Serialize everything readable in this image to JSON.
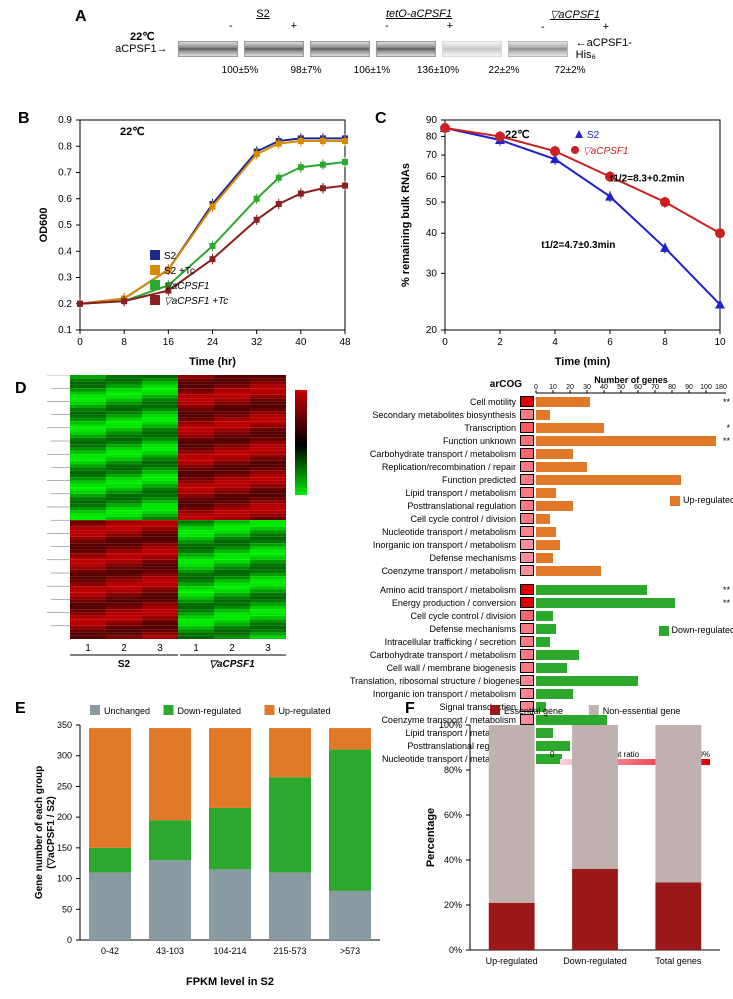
{
  "figure": {
    "panelA": {
      "label": "A",
      "temperature": "22℃",
      "left_label": "aCPSF1→",
      "right_label": "←aCPSF1-His₆",
      "groups": [
        {
          "name": "S2",
          "italic": false
        },
        {
          "name": "tetO-aCPSF1",
          "italic": true
        },
        {
          "name": "▽aCPSF1",
          "italic": true
        }
      ],
      "pm_labels": [
        "-",
        "+",
        "-",
        "+",
        "-",
        "+"
      ],
      "band_intensity": [
        "full",
        "full",
        "full",
        "full",
        "weak",
        "medium"
      ],
      "quants": [
        "100±5%",
        "98±7%",
        "106±1%",
        "136±10%",
        "22±2%",
        "72±2%"
      ]
    },
    "panelB": {
      "label": "B",
      "temperature": "22℃",
      "xlabel": "Time (hr)",
      "ylabel": "OD600",
      "xlim": [
        0,
        48
      ],
      "xtick_step": 8,
      "ylim": [
        0.1,
        0.9
      ],
      "ytick_step": 0.1,
      "series": [
        {
          "name": "S2",
          "color": "#1a2a8a",
          "data": [
            [
              0,
              0.2
            ],
            [
              8,
              0.22
            ],
            [
              16,
              0.33
            ],
            [
              24,
              0.58
            ],
            [
              32,
              0.78
            ],
            [
              36,
              0.82
            ],
            [
              40,
              0.83
            ],
            [
              44,
              0.83
            ],
            [
              48,
              0.83
            ]
          ]
        },
        {
          "name": "S2 +Tc",
          "color": "#d98a00",
          "data": [
            [
              0,
              0.2
            ],
            [
              8,
              0.22
            ],
            [
              16,
              0.33
            ],
            [
              24,
              0.57
            ],
            [
              32,
              0.77
            ],
            [
              36,
              0.81
            ],
            [
              40,
              0.82
            ],
            [
              44,
              0.82
            ],
            [
              48,
              0.82
            ]
          ]
        },
        {
          "name": "▽aCPSF1",
          "italic": true,
          "color": "#2ca82c",
          "data": [
            [
              0,
              0.2
            ],
            [
              8,
              0.21
            ],
            [
              16,
              0.27
            ],
            [
              24,
              0.42
            ],
            [
              32,
              0.6
            ],
            [
              36,
              0.68
            ],
            [
              40,
              0.72
            ],
            [
              44,
              0.73
            ],
            [
              48,
              0.74
            ]
          ]
        },
        {
          "name": "▽aCPSF1 +Tc",
          "italic": true,
          "color": "#8a2020",
          "data": [
            [
              0,
              0.2
            ],
            [
              8,
              0.21
            ],
            [
              16,
              0.25
            ],
            [
              24,
              0.37
            ],
            [
              32,
              0.52
            ],
            [
              36,
              0.58
            ],
            [
              40,
              0.62
            ],
            [
              44,
              0.64
            ],
            [
              48,
              0.65
            ]
          ]
        }
      ],
      "error": 0.02
    },
    "panelC": {
      "label": "C",
      "temperature": "22℃",
      "xlabel": "Time (min)",
      "ylabel": "% remaining bulk RNAs",
      "xlim": [
        0,
        10
      ],
      "xtick_step": 2,
      "yticks": [
        20,
        30,
        40,
        50,
        60,
        70,
        80,
        90
      ],
      "series": [
        {
          "name": "S2",
          "color": "#2020cc",
          "marker": "triangle",
          "data": [
            [
              0,
              85
            ],
            [
              2,
              78
            ],
            [
              4,
              68
            ],
            [
              6,
              52
            ],
            [
              8,
              36
            ],
            [
              10,
              24
            ]
          ],
          "annotation": "t1/2=4.7±0.3min",
          "anno_pos": [
            3.5,
            36
          ]
        },
        {
          "name": "▽aCPSF1",
          "italic": true,
          "color": "#cc2020",
          "marker": "circle",
          "data": [
            [
              0,
              85
            ],
            [
              2,
              80
            ],
            [
              4,
              72
            ],
            [
              6,
              60
            ],
            [
              8,
              50
            ],
            [
              10,
              40
            ]
          ],
          "annotation": "t1/2=8.3+0.2min",
          "anno_pos": [
            6,
            58
          ]
        }
      ],
      "error": 3
    },
    "panelD": {
      "label": "D",
      "heatmap": {
        "rows": 80,
        "cols": 6,
        "col_labels": [
          "1",
          "2",
          "3",
          "1",
          "2",
          "3"
        ],
        "group_labels": [
          "S2",
          "▽aCPSF1"
        ],
        "scale_min": -1.5,
        "scale_max": 1.5,
        "colormap": {
          "low": "#00ff00",
          "mid": "#000000",
          "high": "#cc0000"
        }
      },
      "arcog_header": "arCOG",
      "number_header": "Number of genes",
      "xaxis_ticks": [
        0,
        10,
        20,
        30,
        40,
        50,
        60,
        70,
        80,
        90,
        100,
        180
      ],
      "up_color": "#e07828",
      "down_color": "#2ca82c",
      "up_label": "Up-regulated",
      "down_label": "Down-regulated",
      "enrichment_label": "Enrichment ratio",
      "enrichment_scale": [
        "0",
        "100%"
      ],
      "enrichment_colors": {
        "low": "#ffd0e0",
        "high": "#e00000"
      },
      "up_categories": [
        {
          "name": "Cell motility",
          "count": 32,
          "ratio": 0.95,
          "stars": "**"
        },
        {
          "name": "Secondary metabolites biosynthesis",
          "count": 8,
          "ratio": 0.4,
          "stars": ""
        },
        {
          "name": "Transcription",
          "count": 40,
          "ratio": 0.55,
          "stars": "*"
        },
        {
          "name": "Function unknown",
          "count": 178,
          "ratio": 0.45,
          "stars": "**"
        },
        {
          "name": "Carbohydrate transport / metabolism",
          "count": 22,
          "ratio": 0.5,
          "stars": ""
        },
        {
          "name": "Replication/recombination / repair",
          "count": 30,
          "ratio": 0.4,
          "stars": ""
        },
        {
          "name": "Function predicted",
          "count": 85,
          "ratio": 0.4,
          "stars": ""
        },
        {
          "name": "Lipid transport / metabolism",
          "count": 12,
          "ratio": 0.4,
          "stars": ""
        },
        {
          "name": "Posttranslational regulation",
          "count": 22,
          "ratio": 0.4,
          "stars": ""
        },
        {
          "name": "Cell cycle control / division",
          "count": 8,
          "ratio": 0.4,
          "stars": ""
        },
        {
          "name": "Nucleotide transport / metabolism",
          "count": 12,
          "ratio": 0.35,
          "stars": ""
        },
        {
          "name": "Inorganic ion transport / metabolism",
          "count": 14,
          "ratio": 0.3,
          "stars": ""
        },
        {
          "name": "Defense mechanisms",
          "count": 10,
          "ratio": 0.3,
          "stars": ""
        },
        {
          "name": "Coenzyme transport / metabolism",
          "count": 38,
          "ratio": 0.3,
          "stars": ""
        }
      ],
      "down_categories": [
        {
          "name": "Amino acid transport / metabolism",
          "count": 65,
          "ratio": 0.7,
          "stars": "**"
        },
        {
          "name": "Energy production / conversion",
          "count": 82,
          "ratio": 0.7,
          "stars": "**"
        },
        {
          "name": "Cell cycle control / division",
          "count": 10,
          "ratio": 0.5,
          "stars": ""
        },
        {
          "name": "Defense mechanisms",
          "count": 12,
          "ratio": 0.4,
          "stars": ""
        },
        {
          "name": "Intracellular trafficking / secretion",
          "count": 8,
          "ratio": 0.4,
          "stars": ""
        },
        {
          "name": "Carbohydrate transport / metabolism",
          "count": 25,
          "ratio": 0.4,
          "stars": ""
        },
        {
          "name": "Cell wall / membrane biogenesis",
          "count": 18,
          "ratio": 0.4,
          "stars": ""
        },
        {
          "name": "Translation, ribosomal structure / biogenesis",
          "count": 60,
          "ratio": 0.35,
          "stars": ""
        },
        {
          "name": "Inorganic ion transport / metabolism",
          "count": 22,
          "ratio": 0.35,
          "stars": ""
        },
        {
          "name": "Signal transduction",
          "count": 6,
          "ratio": 0.35,
          "stars": ""
        },
        {
          "name": "Coenzyme transport / metabolism",
          "count": 42,
          "ratio": 0.3,
          "stars": ""
        },
        {
          "name": "Lipid transport / metabolism",
          "count": 10,
          "ratio": 0.3,
          "stars": ""
        },
        {
          "name": "Posttranslational regulation",
          "count": 20,
          "ratio": 0.3,
          "stars": ""
        },
        {
          "name": "Nucleotide transport / metabolism",
          "count": 15,
          "ratio": 0.25,
          "stars": ""
        }
      ]
    },
    "panelE": {
      "label": "E",
      "xlabel": "FPKM level in S2",
      "ylabel": "Gene number of each group\n(▽aCPSF1 / S2)",
      "ylim": [
        0,
        350
      ],
      "ytick_step": 50,
      "categories": [
        "0-42",
        "43-103",
        "104-214",
        "215-573",
        ">573"
      ],
      "colors": {
        "Unchanged": "#8a9aa2",
        "Down-regulated": "#2ca82c",
        "Up-regulated": "#e07828"
      },
      "legend_order": [
        "Unchanged",
        "Down-regulated",
        "Up-regulated"
      ],
      "stacks": [
        {
          "Unchanged": 110,
          "Down-regulated": 40,
          "Up-regulated": 195
        },
        {
          "Unchanged": 130,
          "Down-regulated": 65,
          "Up-regulated": 150
        },
        {
          "Unchanged": 115,
          "Down-regulated": 100,
          "Up-regulated": 130
        },
        {
          "Unchanged": 110,
          "Down-regulated": 155,
          "Up-regulated": 80
        },
        {
          "Unchanged": 80,
          "Down-regulated": 230,
          "Up-regulated": 35
        }
      ]
    },
    "panelF": {
      "label": "F",
      "ylabel": "Percentage",
      "ylim": [
        0,
        100
      ],
      "ytick_step": 20,
      "ytick_suffix": "%",
      "categories": [
        "Up-regulated",
        "Down-regulated",
        "Total genes"
      ],
      "colors": {
        "Essential gene": "#9a1818",
        "Non-essential gene": "#c0b0b0"
      },
      "legend_order": [
        "Essential gene",
        "Non-essential gene"
      ],
      "stacks": [
        {
          "Essential gene": 21,
          "Non-essential gene": 79
        },
        {
          "Essential gene": 36,
          "Non-essential gene": 64
        },
        {
          "Essential gene": 30,
          "Non-essential gene": 70
        }
      ]
    }
  }
}
